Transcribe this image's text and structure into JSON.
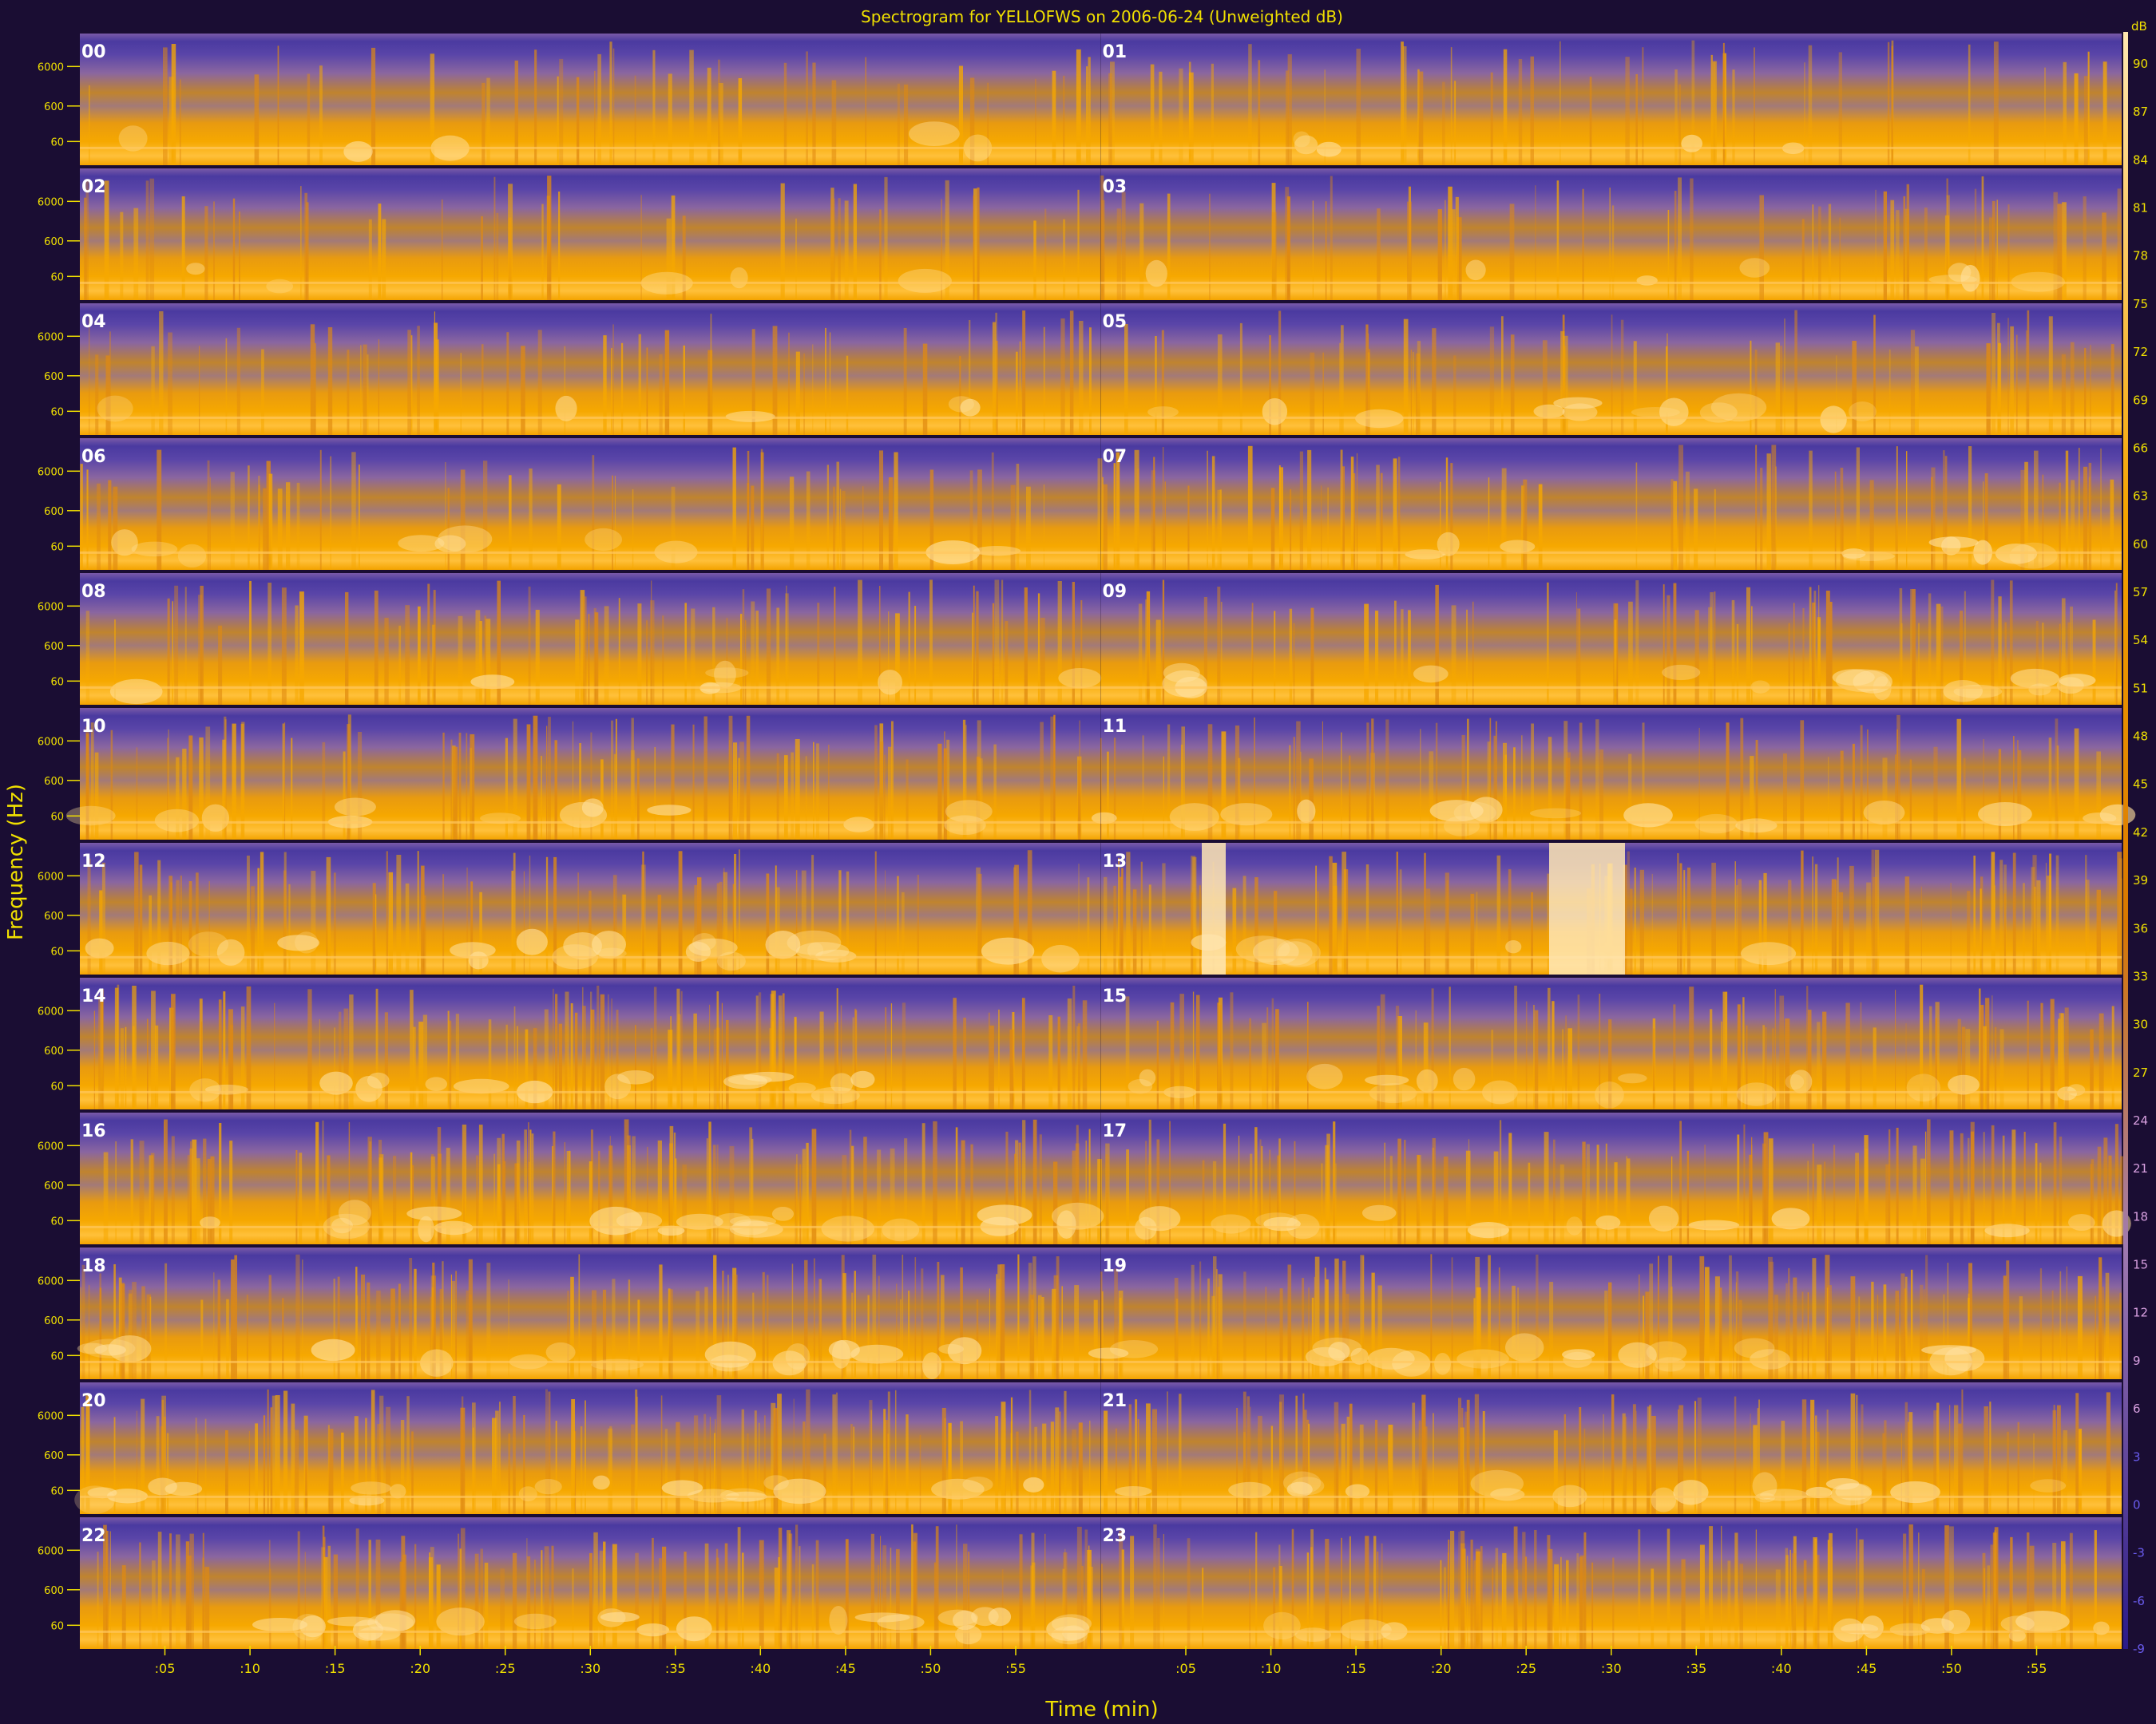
{
  "chart_data": {
    "type": "heatmap",
    "title": "Spectrogram for YELLOFWS on 2006-06-24 (Unweighted dB)",
    "xlabel": "Time (min)",
    "ylabel": "Frequency (Hz)",
    "y_scale": "log",
    "x_tick_labels": [
      ":05",
      ":10",
      ":15",
      ":20",
      ":25",
      ":30",
      ":35",
      ":40",
      ":45",
      ":50",
      ":55"
    ],
    "y_tick_labels": [
      "6000",
      "600",
      "60"
    ],
    "hour_labels": [
      "00",
      "01",
      "02",
      "03",
      "04",
      "05",
      "06",
      "07",
      "08",
      "09",
      "10",
      "11",
      "12",
      "13",
      "14",
      "15",
      "16",
      "17",
      "18",
      "19",
      "20",
      "21",
      "22",
      "23"
    ],
    "colorbar": {
      "label": "dB",
      "range": [
        -9,
        90
      ],
      "ticks": [
        90,
        87,
        84,
        81,
        78,
        75,
        72,
        69,
        66,
        63,
        60,
        57,
        54,
        51,
        48,
        45,
        42,
        39,
        36,
        33,
        30,
        27,
        24,
        21,
        18,
        15,
        12,
        9,
        6,
        3,
        0,
        -3,
        -6,
        -9
      ]
    },
    "colors": {
      "low": "#4a3aa0",
      "mid": "#f4a300",
      "high": "#ffe7b0",
      "background": "#1a0d33",
      "text": "#f0e000"
    }
  }
}
